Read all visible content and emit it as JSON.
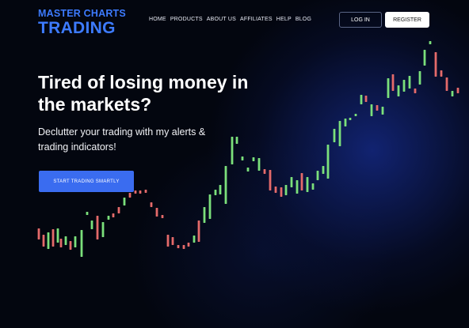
{
  "brand": {
    "line1": "MASTER CHARTS",
    "line2": "TRADING",
    "color": "#3d7bff"
  },
  "nav": {
    "items": [
      "HOME",
      "PRODUCTS",
      "ABOUT US",
      "AFFILIATES",
      "HELP",
      "BLOG"
    ]
  },
  "auth": {
    "login_label": "LOG IN",
    "register_label": "REGISTER"
  },
  "hero": {
    "title": "Tired of losing money in the markets?",
    "subtitle": "Declutter your trading with my alerts & trading indicators!",
    "cta_label": "START TRADING SMARTLY",
    "cta_color": "#3a6cf0"
  },
  "decor": {
    "up_color": "#7be07b",
    "down_color": "#e46a6a"
  }
}
